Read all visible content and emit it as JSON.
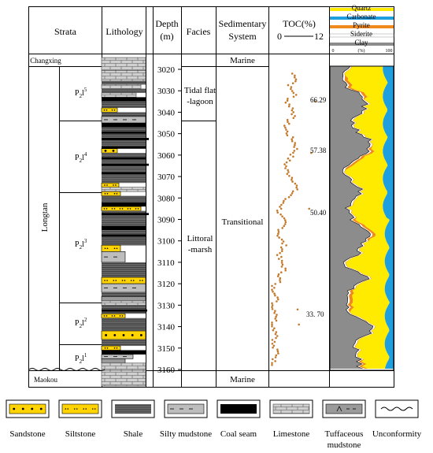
{
  "headers": {
    "strata": "Strata",
    "lithology": "Lithology",
    "depth": "Depth",
    "depth_unit": "(m)",
    "facies": "Facies",
    "sed_system_line1": "Sedimentary",
    "sed_system_line2": "System",
    "toc": "TOC(%)",
    "toc_min": "0",
    "toc_max": "12"
  },
  "mineral_legend": {
    "items": [
      {
        "name": "Quartz",
        "color": "#ffeb00"
      },
      {
        "name": "Carbonate",
        "color": "#1e9fe0"
      },
      {
        "name": "Pyrite",
        "color": "#f08a1c"
      },
      {
        "name": "Siderite",
        "color": "#ffffff"
      },
      {
        "name": "Clay",
        "color": "#8c8c8c"
      }
    ],
    "axis_unit": "(%)",
    "axis_min": "0",
    "axis_max": "100"
  },
  "strata": {
    "formations": [
      "Changxing",
      "Longtan",
      "Maokou"
    ],
    "members": [
      {
        "base": "P",
        "sub": "2",
        "mid": "l",
        "sup": "5"
      },
      {
        "base": "P",
        "sub": "2",
        "mid": "l",
        "sup": "4"
      },
      {
        "base": "P",
        "sub": "2",
        "mid": "l",
        "sup": "3"
      },
      {
        "base": "P",
        "sub": "2",
        "mid": "l",
        "sup": "2"
      },
      {
        "base": "P",
        "sub": "2",
        "mid": "l",
        "sup": "1"
      }
    ]
  },
  "depth_ticks": [
    "3020",
    "3030",
    "3040",
    "3050",
    "3060",
    "3070",
    "3080",
    "3090",
    "3100",
    "3110",
    "3120",
    "3130",
    "3140",
    "3150",
    "3160"
  ],
  "facies": {
    "tidal_line1": "Tidal flat",
    "tidal_line2": "-lagoon",
    "littoral_line1": "Littoral",
    "littoral_line2": "-marsh"
  },
  "sedimentary_system": {
    "top": "Marine",
    "middle": "Transitional",
    "bottom": "Marine"
  },
  "toc_labels": [
    "66.29",
    "57.38",
    "50.40",
    "33. 70"
  ],
  "rock_legend": [
    {
      "key": "sandstone",
      "label": "Sandstone"
    },
    {
      "key": "siltstone",
      "label": "Siltstone"
    },
    {
      "key": "shale",
      "label": "Shale"
    },
    {
      "key": "silty",
      "label": "Silty mudstone"
    },
    {
      "key": "coal",
      "label": "Coal seam"
    },
    {
      "key": "limestone",
      "label": "Limestone"
    },
    {
      "key": "tuff",
      "label": "Tuffaceous",
      "label2": "mudstone"
    },
    {
      "key": "unconf",
      "label": "Unconformity"
    }
  ]
}
